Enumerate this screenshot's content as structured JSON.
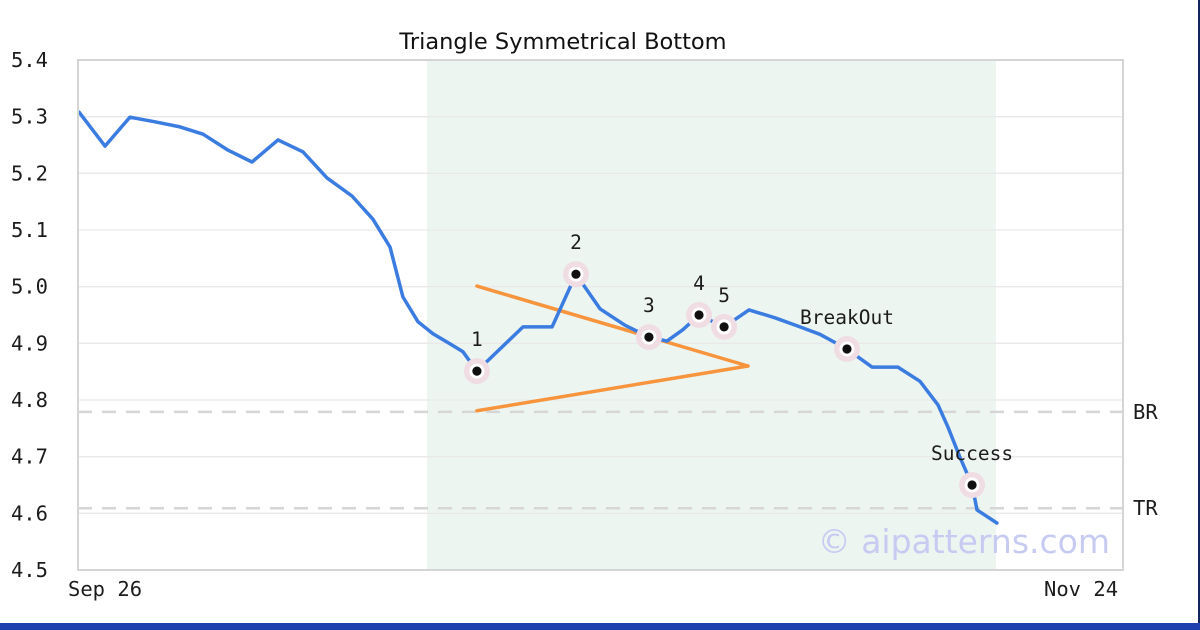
{
  "chart_data": {
    "type": "line",
    "title": "Triangle Symmetrical Bottom",
    "watermark": "© aipatterns.com",
    "x_axis": {
      "domain": [
        0,
        63
      ],
      "ticks": [
        {
          "label": "Sep 26",
          "day": 1.63
        },
        {
          "label": "Nov 24",
          "day": 60.47
        }
      ]
    },
    "y_axis": {
      "min": 4.5,
      "max": 5.4,
      "grid": true,
      "ticks": [
        "5.4",
        "5.3",
        "5.2",
        "5.1",
        "5.0",
        "4.9",
        "4.8",
        "4.7",
        "4.6",
        "4.5"
      ]
    },
    "series": [
      {
        "name": "price",
        "points": [
          [
            0.06,
            5.308
          ],
          [
            1.63,
            5.248
          ],
          [
            3.13,
            5.299
          ],
          [
            4.64,
            5.291
          ],
          [
            6.15,
            5.282
          ],
          [
            7.54,
            5.269
          ],
          [
            9.04,
            5.241
          ],
          [
            10.49,
            5.22
          ],
          [
            12.06,
            5.259
          ],
          [
            13.56,
            5.238
          ],
          [
            15.01,
            5.192
          ],
          [
            16.52,
            5.16
          ],
          [
            17.78,
            5.119
          ],
          [
            18.81,
            5.07
          ],
          [
            19.59,
            4.982
          ],
          [
            20.5,
            4.938
          ],
          [
            21.4,
            4.917
          ],
          [
            22.43,
            4.899
          ],
          [
            23.21,
            4.885
          ],
          [
            24.05,
            4.851
          ],
          [
            26.83,
            4.929
          ],
          [
            28.58,
            4.929
          ],
          [
            30.02,
            5.022
          ],
          [
            31.47,
            4.961
          ],
          [
            32.97,
            4.932
          ],
          [
            34.42,
            4.911
          ],
          [
            35.51,
            4.904
          ],
          [
            36.47,
            4.924
          ],
          [
            37.44,
            4.95
          ],
          [
            38.95,
            4.929
          ],
          [
            40.45,
            4.959
          ],
          [
            42.02,
            4.945
          ],
          [
            43.53,
            4.929
          ],
          [
            44.73,
            4.916
          ],
          [
            46.36,
            4.89
          ],
          [
            47.87,
            4.858
          ],
          [
            49.43,
            4.858
          ],
          [
            50.76,
            4.833
          ],
          [
            51.85,
            4.791
          ],
          [
            52.45,
            4.752
          ],
          [
            53.17,
            4.699
          ],
          [
            53.9,
            4.65
          ],
          [
            54.2,
            4.606
          ],
          [
            55.4,
            4.583
          ]
        ]
      }
    ],
    "markers": [
      {
        "label": "1",
        "day": 24.05,
        "price": 4.851
      },
      {
        "label": "2",
        "day": 30.02,
        "price": 5.022
      },
      {
        "label": "3",
        "day": 34.42,
        "price": 4.911
      },
      {
        "label": "4",
        "day": 37.44,
        "price": 4.95
      },
      {
        "label": "5",
        "day": 38.95,
        "price": 4.929
      },
      {
        "label": "BreakOut",
        "day": 46.36,
        "price": 4.89
      },
      {
        "label": "Success",
        "day": 53.9,
        "price": 4.65
      }
    ],
    "trendlines": [
      {
        "name": "upper",
        "from": {
          "day": 24.05,
          "price": 5.001
        },
        "to": {
          "day": 40.39,
          "price": 4.86
        }
      },
      {
        "name": "lower",
        "from": {
          "day": 24.05,
          "price": 4.781
        },
        "to": {
          "day": 40.39,
          "price": 4.86
        }
      }
    ],
    "levels": [
      {
        "label": "BR",
        "value": 4.779
      },
      {
        "label": "TR",
        "value": 4.609
      }
    ],
    "shade_region": {
      "from_day": 21.04,
      "to_day": 55.34
    },
    "colors": {
      "line": "#3b7ce0",
      "pattern": "#f7953e",
      "shade": "#edf5f1",
      "marker_halo": "#f0dde4",
      "marker_dot": "#101010",
      "watermark": "#c7cbf2",
      "grid": "#e9e9e9",
      "plot_border": "#d5d5d5",
      "dashed_level": "#d6d6d6",
      "tick_text": "#1c1c1c",
      "accent_bar": "#1e3fae"
    }
  }
}
